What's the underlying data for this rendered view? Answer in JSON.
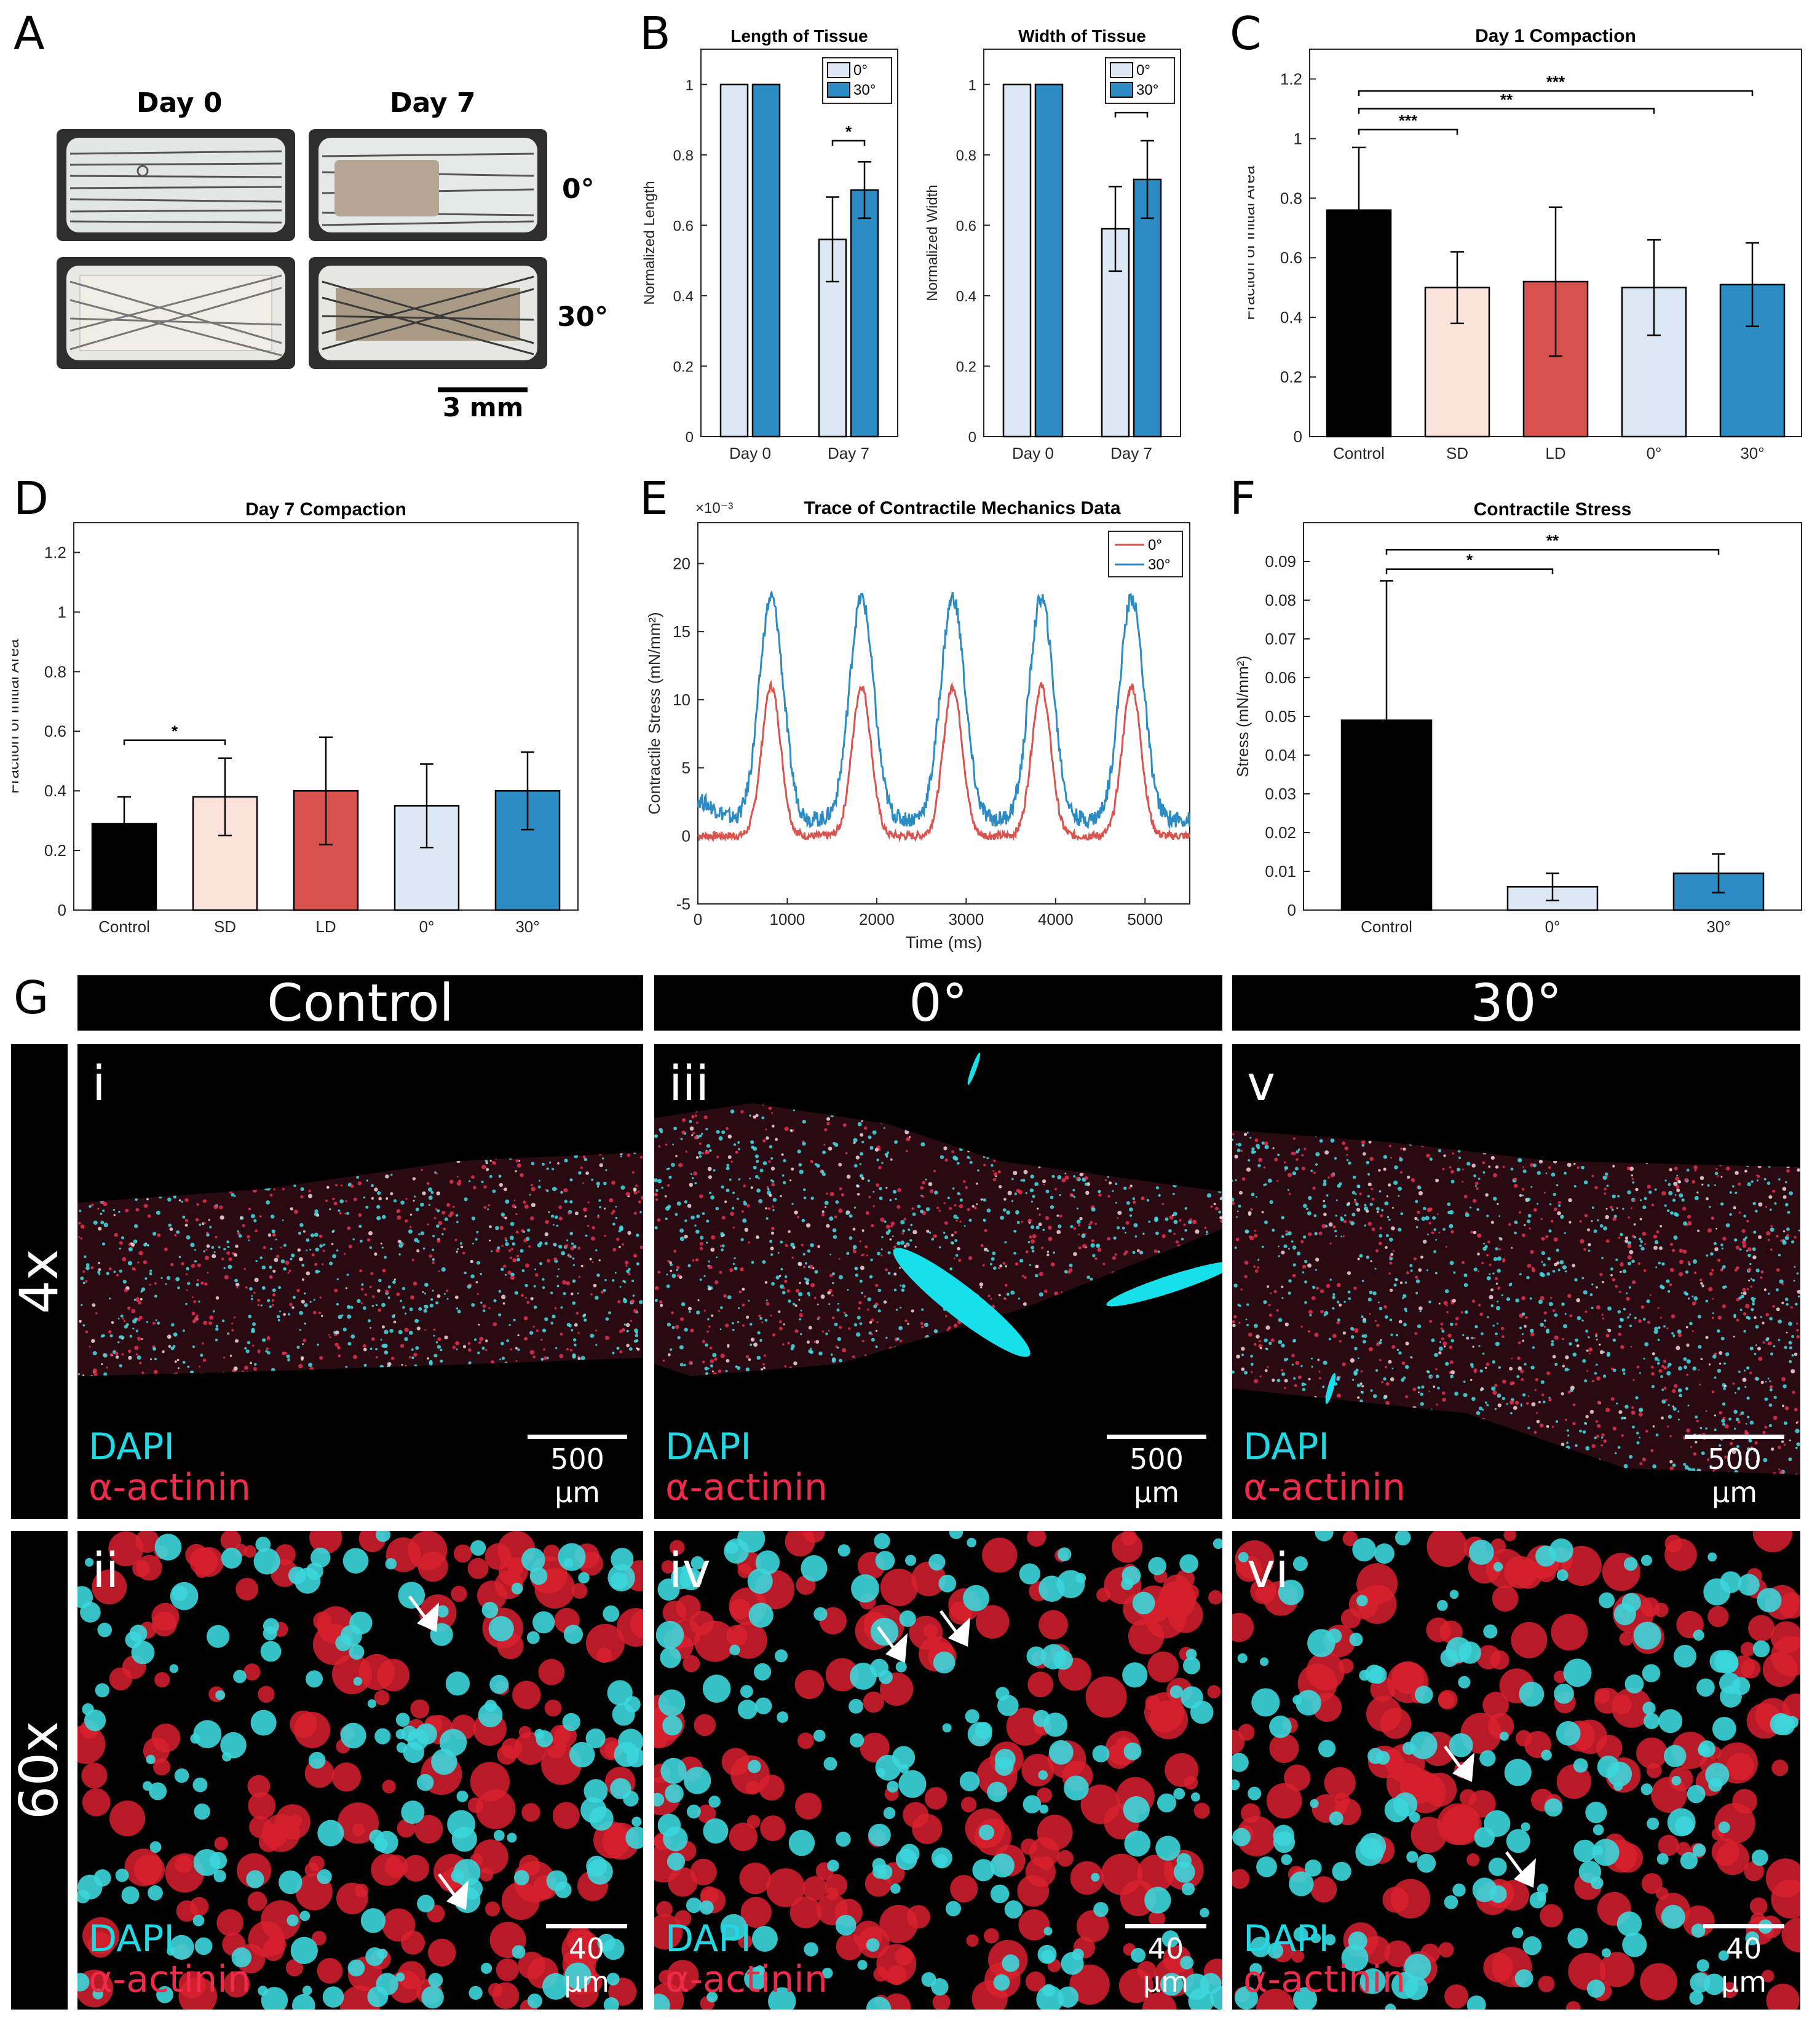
{
  "panels": {
    "A": {
      "label": "A",
      "col_labels": [
        "Day 0",
        "Day 7"
      ],
      "row_labels": [
        "0°",
        "30°"
      ],
      "scale_bar": "3 mm"
    },
    "B": "B",
    "C": "C",
    "D": "D",
    "E": "E",
    "F": "F",
    "G": {
      "label": "G",
      "col_headers": [
        "Control",
        "0°",
        "30°"
      ],
      "row_headers": [
        "4x",
        "60x"
      ],
      "tiles": [
        {
          "roman": "i",
          "scale": "500 µm"
        },
        {
          "roman": "iii",
          "scale": "500 µm"
        },
        {
          "roman": "v",
          "scale": "500 µm"
        },
        {
          "roman": "ii",
          "scale": "40 µm"
        },
        {
          "roman": "iv",
          "scale": "40 µm"
        },
        {
          "roman": "vi",
          "scale": "40 µm"
        }
      ],
      "stain_1": "DAPI",
      "stain_2": "α-actinin"
    }
  },
  "colors": {
    "control": "#000000",
    "SD": "#fbe3db",
    "LD": "#d9514c",
    "zero": "#dde8f5",
    "thirty": "#2b8bc2",
    "trace_zero": "#d9534f",
    "trace_thirty": "#2b8bc2",
    "dapi": "#21d8e3",
    "actinin": "#f02a4a"
  },
  "chart_data": [
    {
      "id": "B1",
      "type": "bar",
      "title": "Length of Tissue",
      "xlabel": "",
      "ylabel": "Normalized Length",
      "categories": [
        "Day 0",
        "Day 7"
      ],
      "ylim": [
        0,
        1.1
      ],
      "yticks": [
        0,
        0.2,
        0.4,
        0.6,
        0.8,
        1
      ],
      "ytick_labels": [
        "0",
        "0.2",
        "0.4",
        "0.6",
        "0.8",
        "1"
      ],
      "legend": "top-right",
      "series": [
        {
          "name": "0°",
          "values": [
            1,
            0.56
          ],
          "err": [
            0,
            0.12
          ]
        },
        {
          "name": "30°",
          "values": [
            1,
            0.7
          ],
          "err": [
            0,
            0.08
          ]
        }
      ],
      "sig": [
        {
          "text": "*",
          "level": 0.84
        }
      ]
    },
    {
      "id": "B2",
      "type": "bar",
      "title": "Width of Tissue",
      "xlabel": "",
      "ylabel": "Normalized Width",
      "categories": [
        "Day 0",
        "Day 7"
      ],
      "ylim": [
        0,
        1.1
      ],
      "yticks": [
        0,
        0.2,
        0.4,
        0.6,
        0.8,
        1
      ],
      "ytick_labels": [
        "0",
        "0.2",
        "0.4",
        "0.6",
        "0.8",
        "1"
      ],
      "legend": "top-right",
      "series": [
        {
          "name": "0°",
          "values": [
            1,
            0.59
          ],
          "err": [
            0,
            0.12
          ]
        },
        {
          "name": "30°",
          "values": [
            1,
            0.73
          ],
          "err": [
            0,
            0.11
          ]
        }
      ],
      "sig": [
        {
          "text": "",
          "level": 0.92
        }
      ]
    },
    {
      "id": "C",
      "type": "bar",
      "title": "Day 1 Compaction",
      "xlabel": "",
      "ylabel": "Fraction of Initial Area",
      "categories": [
        "Control",
        "SD",
        "LD",
        "0°",
        "30°"
      ],
      "ylim": [
        0,
        1.3
      ],
      "yticks": [
        0,
        0.2,
        0.4,
        0.6,
        0.8,
        1,
        1.2
      ],
      "ytick_labels": [
        "0",
        "0.2",
        "0.4",
        "0.6",
        "0.8",
        "1",
        "1.2"
      ],
      "values": [
        0.76,
        0.5,
        0.52,
        0.5,
        0.51
      ],
      "err": [
        0.21,
        0.12,
        0.25,
        0.16,
        0.14
      ],
      "sig": [
        {
          "text": "***",
          "from": 0,
          "to": 1,
          "level": 1.03
        },
        {
          "text": "**",
          "from": 0,
          "to": 3,
          "level": 1.1
        },
        {
          "text": "***",
          "from": 0,
          "to": 4,
          "level": 1.16
        }
      ]
    },
    {
      "id": "D",
      "type": "bar",
      "title": "Day 7 Compaction",
      "xlabel": "",
      "ylabel": "Fraction of Initial Area",
      "categories": [
        "Control",
        "SD",
        "LD",
        "0°",
        "30°"
      ],
      "ylim": [
        0,
        1.3
      ],
      "yticks": [
        0,
        0.2,
        0.4,
        0.6,
        0.8,
        1,
        1.2
      ],
      "ytick_labels": [
        "0",
        "0.2",
        "0.4",
        "0.6",
        "0.8",
        "1",
        "1.2"
      ],
      "values": [
        0.29,
        0.38,
        0.4,
        0.35,
        0.4
      ],
      "err": [
        0.09,
        0.13,
        0.18,
        0.14,
        0.13
      ],
      "sig": [
        {
          "text": "*",
          "from": 0,
          "to": 1,
          "level": 0.57
        }
      ]
    },
    {
      "id": "E",
      "type": "line",
      "title": "Trace of Contractile Mechanics Data",
      "xlabel": "Time (ms)",
      "ylabel": "Contractile Stress (mN/mm²)",
      "exponent": "×10⁻³",
      "xlim": [
        0,
        5500
      ],
      "ylim": [
        -5,
        23
      ],
      "xticks": [
        0,
        1000,
        2000,
        3000,
        4000,
        5000
      ],
      "yticks": [
        -5,
        0,
        5,
        10,
        15,
        20
      ],
      "legend": "top-right",
      "peak_times": [
        820,
        1830,
        2850,
        3840,
        4850
      ],
      "series": [
        {
          "name": "0°",
          "baseline": 0,
          "peak": 11,
          "width": 150
        },
        {
          "name": "30°",
          "baseline": 1.2,
          "peak": 17.5,
          "width": 190
        }
      ]
    },
    {
      "id": "F",
      "type": "bar",
      "title": "Contractile Stress",
      "xlabel": "",
      "ylabel": "Stress (mN/mm²)",
      "categories": [
        "Control",
        "0°",
        "30°"
      ],
      "ylim": [
        0,
        0.1
      ],
      "yticks": [
        0,
        0.01,
        0.02,
        0.03,
        0.04,
        0.05,
        0.06,
        0.07,
        0.08,
        0.09
      ],
      "ytick_labels": [
        "0",
        "0.01",
        "0.02",
        "0.03",
        "0.04",
        "0.05",
        "0.06",
        "0.07",
        "0.08",
        "0.09"
      ],
      "values": [
        0.049,
        0.006,
        0.0095
      ],
      "err": [
        0.036,
        0.0035,
        0.005
      ],
      "sig": [
        {
          "text": "*",
          "from": 0,
          "to": 1,
          "level": 0.088
        },
        {
          "text": "**",
          "from": 0,
          "to": 2,
          "level": 0.093
        }
      ]
    }
  ]
}
